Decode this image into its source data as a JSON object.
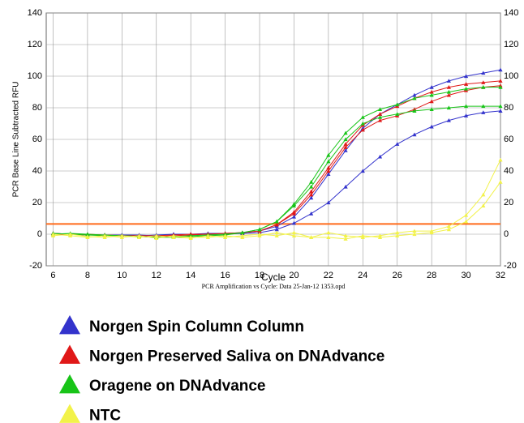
{
  "chart_data": {
    "type": "line",
    "y_label": "PCR Base Line Subtracted RFU",
    "x_label": "Cycle",
    "footer": "PCR Amplification vs Cycle: Data 25-Jan-12 1353.opd",
    "x": [
      6,
      7,
      8,
      9,
      10,
      11,
      12,
      13,
      14,
      15,
      16,
      17,
      18,
      19,
      20,
      21,
      22,
      23,
      24,
      25,
      26,
      27,
      28,
      29,
      30,
      31,
      32
    ],
    "xlim": [
      5.6,
      32
    ],
    "xticks": [
      6,
      8,
      10,
      12,
      14,
      16,
      18,
      20,
      22,
      24,
      26,
      28,
      30,
      32
    ],
    "ylim": [
      -20,
      140
    ],
    "yticks": [
      -20,
      0,
      20,
      40,
      60,
      80,
      100,
      120,
      140
    ],
    "grid": true,
    "threshold": 6.5,
    "threshold_color": "#ff6a1a",
    "series": [
      {
        "name": "Norgen Spin Column Column",
        "color": "#3333cc",
        "curves": [
          [
            0,
            0,
            -0.5,
            -0.5,
            -0.5,
            -0.5,
            -1,
            0,
            0,
            0.5,
            0.5,
            1,
            2,
            5,
            11,
            23,
            38,
            53,
            67,
            76,
            82,
            88,
            93,
            97,
            100,
            102,
            104
          ],
          [
            0.5,
            0,
            -0.5,
            -0.5,
            -0.5,
            -1,
            -0.5,
            0,
            0,
            0,
            0,
            0.5,
            1,
            3,
            7,
            13,
            20,
            30,
            40,
            49,
            57,
            63,
            68,
            72,
            75,
            77,
            78
          ]
        ]
      },
      {
        "name": "Norgen Preserved Saliva on DNAdvance",
        "color": "#e01818",
        "curves": [
          [
            0,
            0,
            -0.5,
            -0.5,
            -1,
            -1,
            -1,
            -0.5,
            0,
            0,
            0.5,
            1,
            2,
            6,
            14,
            27,
            42,
            57,
            69,
            76,
            81,
            86,
            90,
            93,
            95,
            96,
            97
          ],
          [
            0.5,
            0,
            0,
            -0.5,
            -1,
            -1,
            -1.5,
            -1,
            -0.5,
            0,
            0.5,
            1,
            2,
            6,
            13,
            25,
            40,
            55,
            66,
            72,
            75,
            79,
            84,
            88,
            91,
            93,
            94
          ]
        ]
      },
      {
        "name": "Oragene on DNAdvance",
        "color": "#18c418",
        "curves": [
          [
            0,
            0.5,
            0,
            -0.5,
            -1,
            -1.5,
            -2,
            -1.5,
            -1,
            -0.5,
            0,
            1,
            3,
            8,
            19,
            33,
            50,
            64,
            74,
            79,
            82,
            86,
            88,
            90,
            92,
            93,
            93
          ],
          [
            0.5,
            0,
            -0.5,
            -1,
            -1,
            -1.5,
            -2,
            -2,
            -1.5,
            -1,
            -0.5,
            1,
            3,
            8,
            18,
            30,
            46,
            60,
            70,
            74,
            76,
            78,
            79,
            80,
            81,
            81,
            81
          ]
        ]
      },
      {
        "name": "NTC",
        "color": "#f2f24a",
        "curves": [
          [
            -1,
            0,
            -1.5,
            -2,
            -1,
            -2,
            -1,
            -2,
            -2.5,
            -1,
            -2,
            -1,
            0,
            -1,
            1,
            -2,
            1,
            -1,
            -2,
            -1,
            1,
            2,
            2,
            5,
            12,
            25,
            47
          ],
          [
            0,
            -1,
            -2,
            -1,
            -2,
            -1,
            -2.5,
            -1,
            -2,
            -2,
            -1,
            -2,
            -1,
            1,
            -1,
            -2,
            -2,
            -3,
            -1,
            -2,
            -1,
            0,
            1,
            3,
            8,
            18,
            33
          ]
        ]
      }
    ]
  }
}
